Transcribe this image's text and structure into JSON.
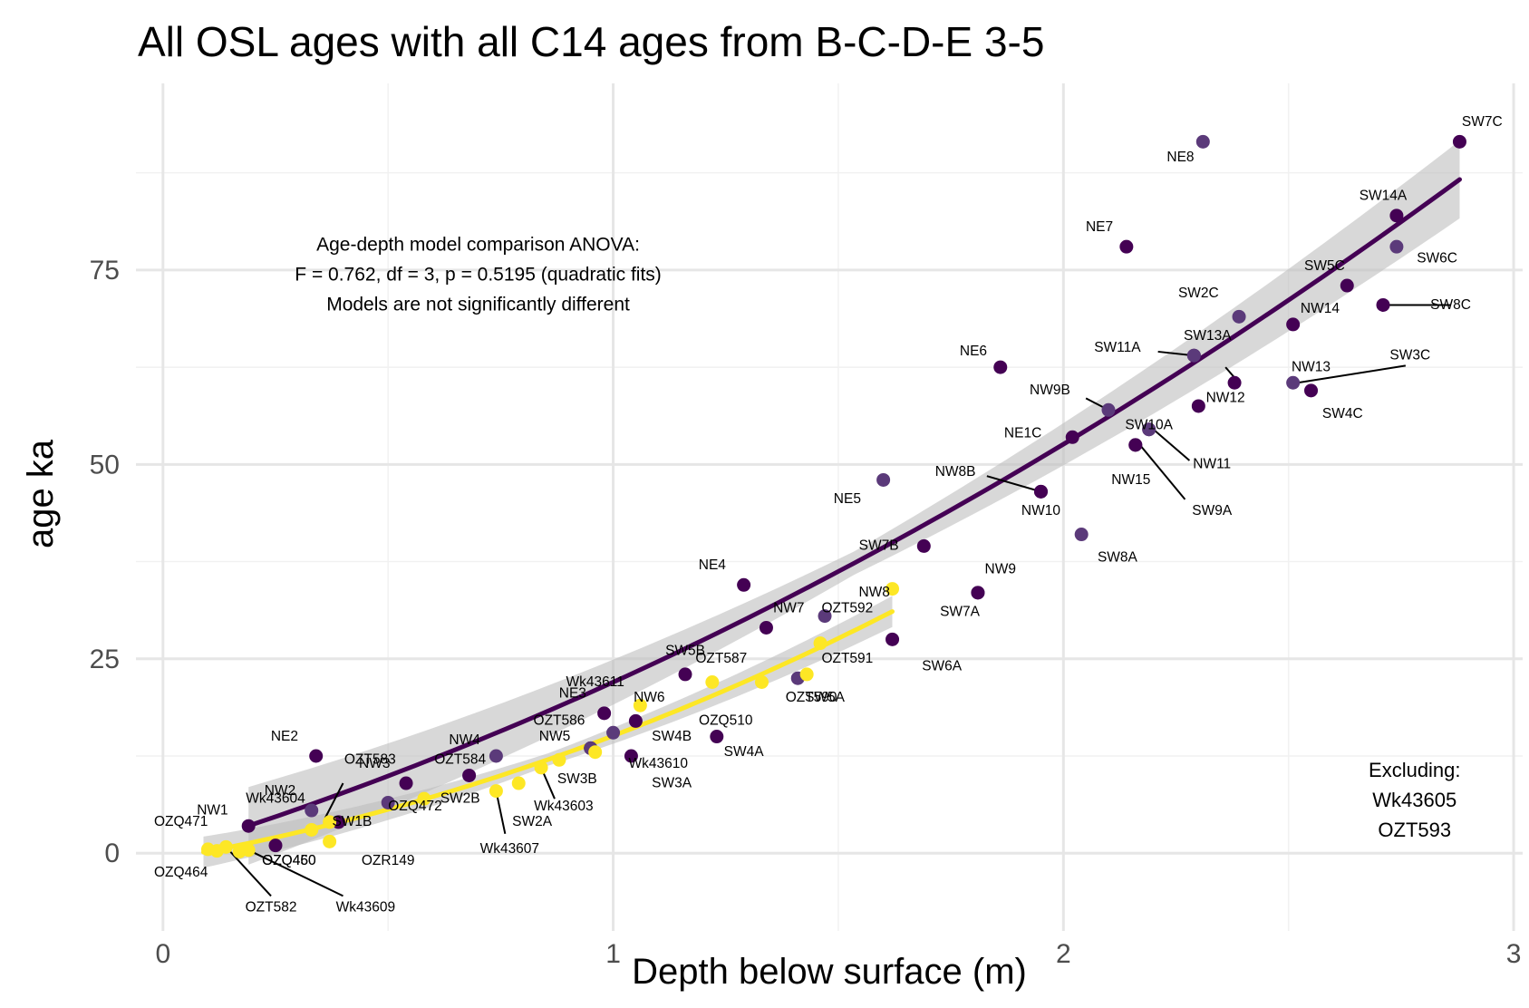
{
  "chart_data": {
    "type": "scatter",
    "title": "All OSL ages with all C14 ages from B-C-D-E 3-5",
    "xlabel": "Depth below surface (m)",
    "ylabel": "age ka",
    "xlim": [
      -0.06,
      3.02
    ],
    "ylim": [
      -10,
      99
    ],
    "x_ticks": [
      0,
      1,
      2,
      3
    ],
    "y_ticks": [
      0,
      25,
      50,
      75
    ],
    "x_tick_labels": [
      "0",
      "1",
      "2",
      "3"
    ],
    "y_tick_labels": [
      "0",
      "25",
      "50",
      "75"
    ],
    "grid": true,
    "colors": {
      "osl": "#440154",
      "c14": "#fde725",
      "ribbon": "#bebebe",
      "mid": "#5b3a7a"
    },
    "annotation": [
      "Age-depth model comparison ANOVA:",
      "F = 0.762, df = 3, p = 0.5195 (quadratic fits)",
      "Models are not significantly different"
    ],
    "excluded_note": [
      "Excluding:",
      "Wk43605",
      "OZT593"
    ],
    "osl_fit": {
      "coeffs": [
        0.0,
        17.7,
        4.3
      ],
      "x_range": [
        0.19,
        2.88
      ],
      "ribbon_half_width": [
        5.0,
        1.5,
        5.0
      ]
    },
    "c14_fit": {
      "coeffs": [
        -0.8,
        9.8,
        6.1
      ],
      "x_range": [
        0.09,
        1.62
      ],
      "ribbon_half_width": [
        2.0,
        0.8,
        2.0
      ]
    },
    "series": [
      {
        "name": "OSL",
        "points": [
          {
            "label": "SW7C",
            "x": 2.88,
            "y": 91.5
          },
          {
            "label": "NE8",
            "x": 2.31,
            "y": 91.5
          },
          {
            "label": "SW14A",
            "x": 2.74,
            "y": 82
          },
          {
            "label": "NE7",
            "x": 2.14,
            "y": 78
          },
          {
            "label": "SW6C",
            "x": 2.74,
            "y": 78
          },
          {
            "label": "SW8C",
            "x": 2.71,
            "y": 70.5
          },
          {
            "label": "SW5C",
            "x": 2.63,
            "y": 73
          },
          {
            "label": "SW2C",
            "x": 2.39,
            "y": 69
          },
          {
            "label": "NW14",
            "x": 2.51,
            "y": 68
          },
          {
            "label": "SW13A",
            "x": 2.29,
            "y": 64
          },
          {
            "label": "SW11A",
            "x": 2.29,
            "y": 64
          },
          {
            "label": "NE6",
            "x": 1.86,
            "y": 62.5
          },
          {
            "label": "NW13",
            "x": 2.38,
            "y": 60.5
          },
          {
            "label": "SW3C",
            "x": 2.51,
            "y": 60.5
          },
          {
            "label": "SW4C",
            "x": 2.55,
            "y": 59.5
          },
          {
            "label": "NW12",
            "x": 2.3,
            "y": 57.5
          },
          {
            "label": "NW9B",
            "x": 2.1,
            "y": 57
          },
          {
            "label": "SW10A",
            "x": 2.19,
            "y": 54.5
          },
          {
            "label": "NE1C",
            "x": 2.02,
            "y": 53.5
          },
          {
            "label": "NW11",
            "x": 2.19,
            "y": 54.5
          },
          {
            "label": "NW15",
            "x": 2.16,
            "y": 52.5
          },
          {
            "label": "SW9A",
            "x": 2.16,
            "y": 52.5
          },
          {
            "label": "NE5",
            "x": 1.6,
            "y": 48
          },
          {
            "label": "NW8B",
            "x": 1.95,
            "y": 46.5
          },
          {
            "label": "NW10",
            "x": 1.95,
            "y": 46.5
          },
          {
            "label": "SW8A",
            "x": 2.04,
            "y": 41
          },
          {
            "label": "SW7B",
            "x": 1.69,
            "y": 39.5
          },
          {
            "label": "NE4",
            "x": 1.29,
            "y": 34.5
          },
          {
            "label": "NW9",
            "x": 1.81,
            "y": 33.5
          },
          {
            "label": "SW7A",
            "x": 1.81,
            "y": 33.5
          },
          {
            "label": "NW7",
            "x": 1.34,
            "y": 29
          },
          {
            "label": "NW8",
            "x": 1.47,
            "y": 30.5
          },
          {
            "label": "SW6A",
            "x": 1.62,
            "y": 27.5
          },
          {
            "label": "SW5B",
            "x": 1.16,
            "y": 23
          },
          {
            "label": "SW5A",
            "x": 1.41,
            "y": 22.5
          },
          {
            "label": "NE3",
            "x": 0.98,
            "y": 18
          },
          {
            "label": "NW6",
            "x": 1.05,
            "y": 17
          },
          {
            "label": "SW4B",
            "x": 1.0,
            "y": 15.5
          },
          {
            "label": "SW4A",
            "x": 1.23,
            "y": 15
          },
          {
            "label": "NW5",
            "x": 0.95,
            "y": 13.5
          },
          {
            "label": "SW3B",
            "x": 0.95,
            "y": 13.5
          },
          {
            "label": "NE2",
            "x": 0.34,
            "y": 12.5
          },
          {
            "label": "SW3A",
            "x": 1.04,
            "y": 12.5
          },
          {
            "label": "NW4",
            "x": 0.74,
            "y": 12.5
          },
          {
            "label": "SW2B",
            "x": 0.68,
            "y": 10
          },
          {
            "label": "NW3",
            "x": 0.54,
            "y": 9
          },
          {
            "label": "NW2",
            "x": 0.33,
            "y": 5.5
          },
          {
            "label": "SW1B",
            "x": 0.39,
            "y": 4
          },
          {
            "label": "NW1",
            "x": 0.19,
            "y": 3.5
          },
          {
            "label": "SW2A",
            "x": 0.5,
            "y": 6.5
          },
          {
            "label": "OZQ460",
            "x": 0.25,
            "y": 1
          }
        ]
      },
      {
        "name": "C14",
        "points": [
          {
            "label": "OZT592",
            "x": 1.62,
            "y": 34
          },
          {
            "label": "OZT591",
            "x": 1.46,
            "y": 27
          },
          {
            "label": "OZT587",
            "x": 1.22,
            "y": 22
          },
          {
            "label": "OZT590",
            "x": 1.43,
            "y": 23
          },
          {
            "label": "Wk43611",
            "x": 1.06,
            "y": 19
          },
          {
            "label": "OZQ510",
            "x": 1.33,
            "y": 22
          },
          {
            "label": "OZT586",
            "x": 0.96,
            "y": 13
          },
          {
            "label": "Wk43610",
            "x": 0.88,
            "y": 12
          },
          {
            "label": "Wk43603",
            "x": 0.84,
            "y": 11
          },
          {
            "label": "OZT584",
            "x": 0.79,
            "y": 9
          },
          {
            "label": "Wk43607",
            "x": 0.74,
            "y": 8
          },
          {
            "label": "OZQ472",
            "x": 0.58,
            "y": 7
          },
          {
            "label": "OZT583",
            "x": 0.37,
            "y": 4
          },
          {
            "label": "Wk43604",
            "x": 0.33,
            "y": 3
          },
          {
            "label": "OZR149",
            "x": 0.37,
            "y": 1.5
          },
          {
            "label": "OZQ471",
            "x": 0.1,
            "y": 0.5
          },
          {
            "label": "OZQ464",
            "x": 0.12,
            "y": 0.3
          },
          {
            "label": "OZT582",
            "x": 0.14,
            "y": 0.8
          },
          {
            "label": "OZQ450",
            "x": 0.17,
            "y": 0.2
          },
          {
            "label": "Wk43609",
            "x": 0.19,
            "y": 0.4
          }
        ]
      }
    ],
    "labels": [
      {
        "text": "SW7C",
        "x": 2.93,
        "y": 93.5
      },
      {
        "text": "NE8",
        "x": 2.26,
        "y": 89
      },
      {
        "text": "SW14A",
        "x": 2.71,
        "y": 84
      },
      {
        "text": "NE7",
        "x": 2.08,
        "y": 80
      },
      {
        "text": "SW6C",
        "x": 2.83,
        "y": 76
      },
      {
        "text": "SW8C",
        "x": 2.86,
        "y": 70
      },
      {
        "text": "SW5C",
        "x": 2.58,
        "y": 75
      },
      {
        "text": "SW2C",
        "x": 2.3,
        "y": 71.5
      },
      {
        "text": "NW14",
        "x": 2.57,
        "y": 69.5
      },
      {
        "text": "SW13A",
        "x": 2.32,
        "y": 66
      },
      {
        "text": "SW11A",
        "x": 2.12,
        "y": 64.5
      },
      {
        "text": "NE6",
        "x": 1.8,
        "y": 64
      },
      {
        "text": "NW13",
        "x": 2.55,
        "y": 62
      },
      {
        "text": "SW3C",
        "x": 2.77,
        "y": 63.5
      },
      {
        "text": "SW4C",
        "x": 2.62,
        "y": 56
      },
      {
        "text": "NW12",
        "x": 2.36,
        "y": 58
      },
      {
        "text": "NW9B",
        "x": 1.97,
        "y": 59
      },
      {
        "text": "SW10A",
        "x": 2.19,
        "y": 54.5
      },
      {
        "text": "NE1C",
        "x": 1.91,
        "y": 53.5
      },
      {
        "text": "NW11",
        "x": 2.33,
        "y": 49.5
      },
      {
        "text": "NW15",
        "x": 2.15,
        "y": 47.5
      },
      {
        "text": "SW9A",
        "x": 2.33,
        "y": 43.5
      },
      {
        "text": "NE5",
        "x": 1.52,
        "y": 45
      },
      {
        "text": "NW8B",
        "x": 1.76,
        "y": 48.5
      },
      {
        "text": "NW10",
        "x": 1.95,
        "y": 43.5
      },
      {
        "text": "SW8A",
        "x": 2.12,
        "y": 37.5
      },
      {
        "text": "SW7B",
        "x": 1.59,
        "y": 39
      },
      {
        "text": "NE4",
        "x": 1.22,
        "y": 36.5
      },
      {
        "text": "NW9",
        "x": 1.86,
        "y": 36
      },
      {
        "text": "SW7A",
        "x": 1.77,
        "y": 30.5
      },
      {
        "text": "NW7",
        "x": 1.39,
        "y": 31
      },
      {
        "text": "NW8",
        "x": 1.58,
        "y": 33
      },
      {
        "text": "SW6A",
        "x": 1.73,
        "y": 23.5
      },
      {
        "text": "SW5B",
        "x": 1.16,
        "y": 25.5
      },
      {
        "text": "SW5A",
        "x": 1.47,
        "y": 19.5
      },
      {
        "text": "NE3",
        "x": 0.91,
        "y": 20
      },
      {
        "text": "NW6",
        "x": 1.08,
        "y": 19.5
      },
      {
        "text": "SW4B",
        "x": 1.13,
        "y": 14.5
      },
      {
        "text": "SW4A",
        "x": 1.29,
        "y": 12.5
      },
      {
        "text": "NW5",
        "x": 0.87,
        "y": 14.5
      },
      {
        "text": "SW3B",
        "x": 0.92,
        "y": 9
      },
      {
        "text": "NE2",
        "x": 0.27,
        "y": 14.5
      },
      {
        "text": "SW3A",
        "x": 1.13,
        "y": 8.5
      },
      {
        "text": "NW4",
        "x": 0.67,
        "y": 14
      },
      {
        "text": "SW2B",
        "x": 0.66,
        "y": 6.5
      },
      {
        "text": "NW3",
        "x": 0.47,
        "y": 11
      },
      {
        "text": "NW2",
        "x": 0.26,
        "y": 7.5
      },
      {
        "text": "SW1B",
        "x": 0.42,
        "y": 3.5
      },
      {
        "text": "NW1",
        "x": 0.11,
        "y": 5
      },
      {
        "text": "SW2A",
        "x": 0.82,
        "y": 3.5
      },
      {
        "text": "OZQ460",
        "x": 0.28,
        "y": -1.5
      },
      {
        "text": "OZT592",
        "x": 1.52,
        "y": 31
      },
      {
        "text": "OZT591",
        "x": 1.52,
        "y": 24.5
      },
      {
        "text": "OZT587",
        "x": 1.24,
        "y": 24.5
      },
      {
        "text": "OZT590",
        "x": 1.44,
        "y": 19.5
      },
      {
        "text": "Wk43611",
        "x": 0.96,
        "y": 21.5
      },
      {
        "text": "OZQ510",
        "x": 1.25,
        "y": 16.5
      },
      {
        "text": "OZT586",
        "x": 0.88,
        "y": 16.5
      },
      {
        "text": "Wk43610",
        "x": 1.1,
        "y": 11
      },
      {
        "text": "Wk43603",
        "x": 0.89,
        "y": 5.5
      },
      {
        "text": "OZT584",
        "x": 0.66,
        "y": 11.5
      },
      {
        "text": "Wk43607",
        "x": 0.77,
        "y": 0
      },
      {
        "text": "OZQ472",
        "x": 0.56,
        "y": 5.5
      },
      {
        "text": "OZT583",
        "x": 0.46,
        "y": 11.5
      },
      {
        "text": "Wk43604",
        "x": 0.25,
        "y": 6.5
      },
      {
        "text": "OZR149",
        "x": 0.5,
        "y": -1.5
      },
      {
        "text": "OZQ471",
        "x": 0.04,
        "y": 3.5
      },
      {
        "text": "OZQ464",
        "x": 0.04,
        "y": -3
      },
      {
        "text": "OZT582",
        "x": 0.24,
        "y": -7.5
      },
      {
        "text": "OZQ450",
        "x": 0.28,
        "y": -1.5
      },
      {
        "text": "Wk43609",
        "x": 0.45,
        "y": -7.5
      }
    ],
    "leaders": [
      {
        "x1": 2.86,
        "y1": 70.5,
        "x2": 2.72,
        "y2": 70.5
      },
      {
        "x1": 2.21,
        "y1": 64.5,
        "x2": 2.29,
        "y2": 64
      },
      {
        "x1": 2.76,
        "y1": 62.7,
        "x2": 2.52,
        "y2": 60.5
      },
      {
        "x1": 2.36,
        "y1": 62.5,
        "x2": 2.39,
        "y2": 60.5
      },
      {
        "x1": 2.05,
        "y1": 58.5,
        "x2": 2.1,
        "y2": 57
      },
      {
        "x1": 2.28,
        "y1": 50.5,
        "x2": 2.2,
        "y2": 54.5
      },
      {
        "x1": 2.27,
        "y1": 45.5,
        "x2": 2.17,
        "y2": 52.5
      },
      {
        "x1": 1.83,
        "y1": 48.5,
        "x2": 1.95,
        "y2": 46.5
      },
      {
        "x1": 0.87,
        "y1": 7,
        "x2": 0.84,
        "y2": 11
      },
      {
        "x1": 0.76,
        "y1": 2.5,
        "x2": 0.74,
        "y2": 8
      },
      {
        "x1": 0.36,
        "y1": 4.5,
        "x2": 0.4,
        "y2": 9
      },
      {
        "x1": 0.24,
        "y1": -5.5,
        "x2": 0.14,
        "y2": 0.8
      },
      {
        "x1": 0.4,
        "y1": -5.5,
        "x2": 0.19,
        "y2": 0.4
      }
    ]
  }
}
